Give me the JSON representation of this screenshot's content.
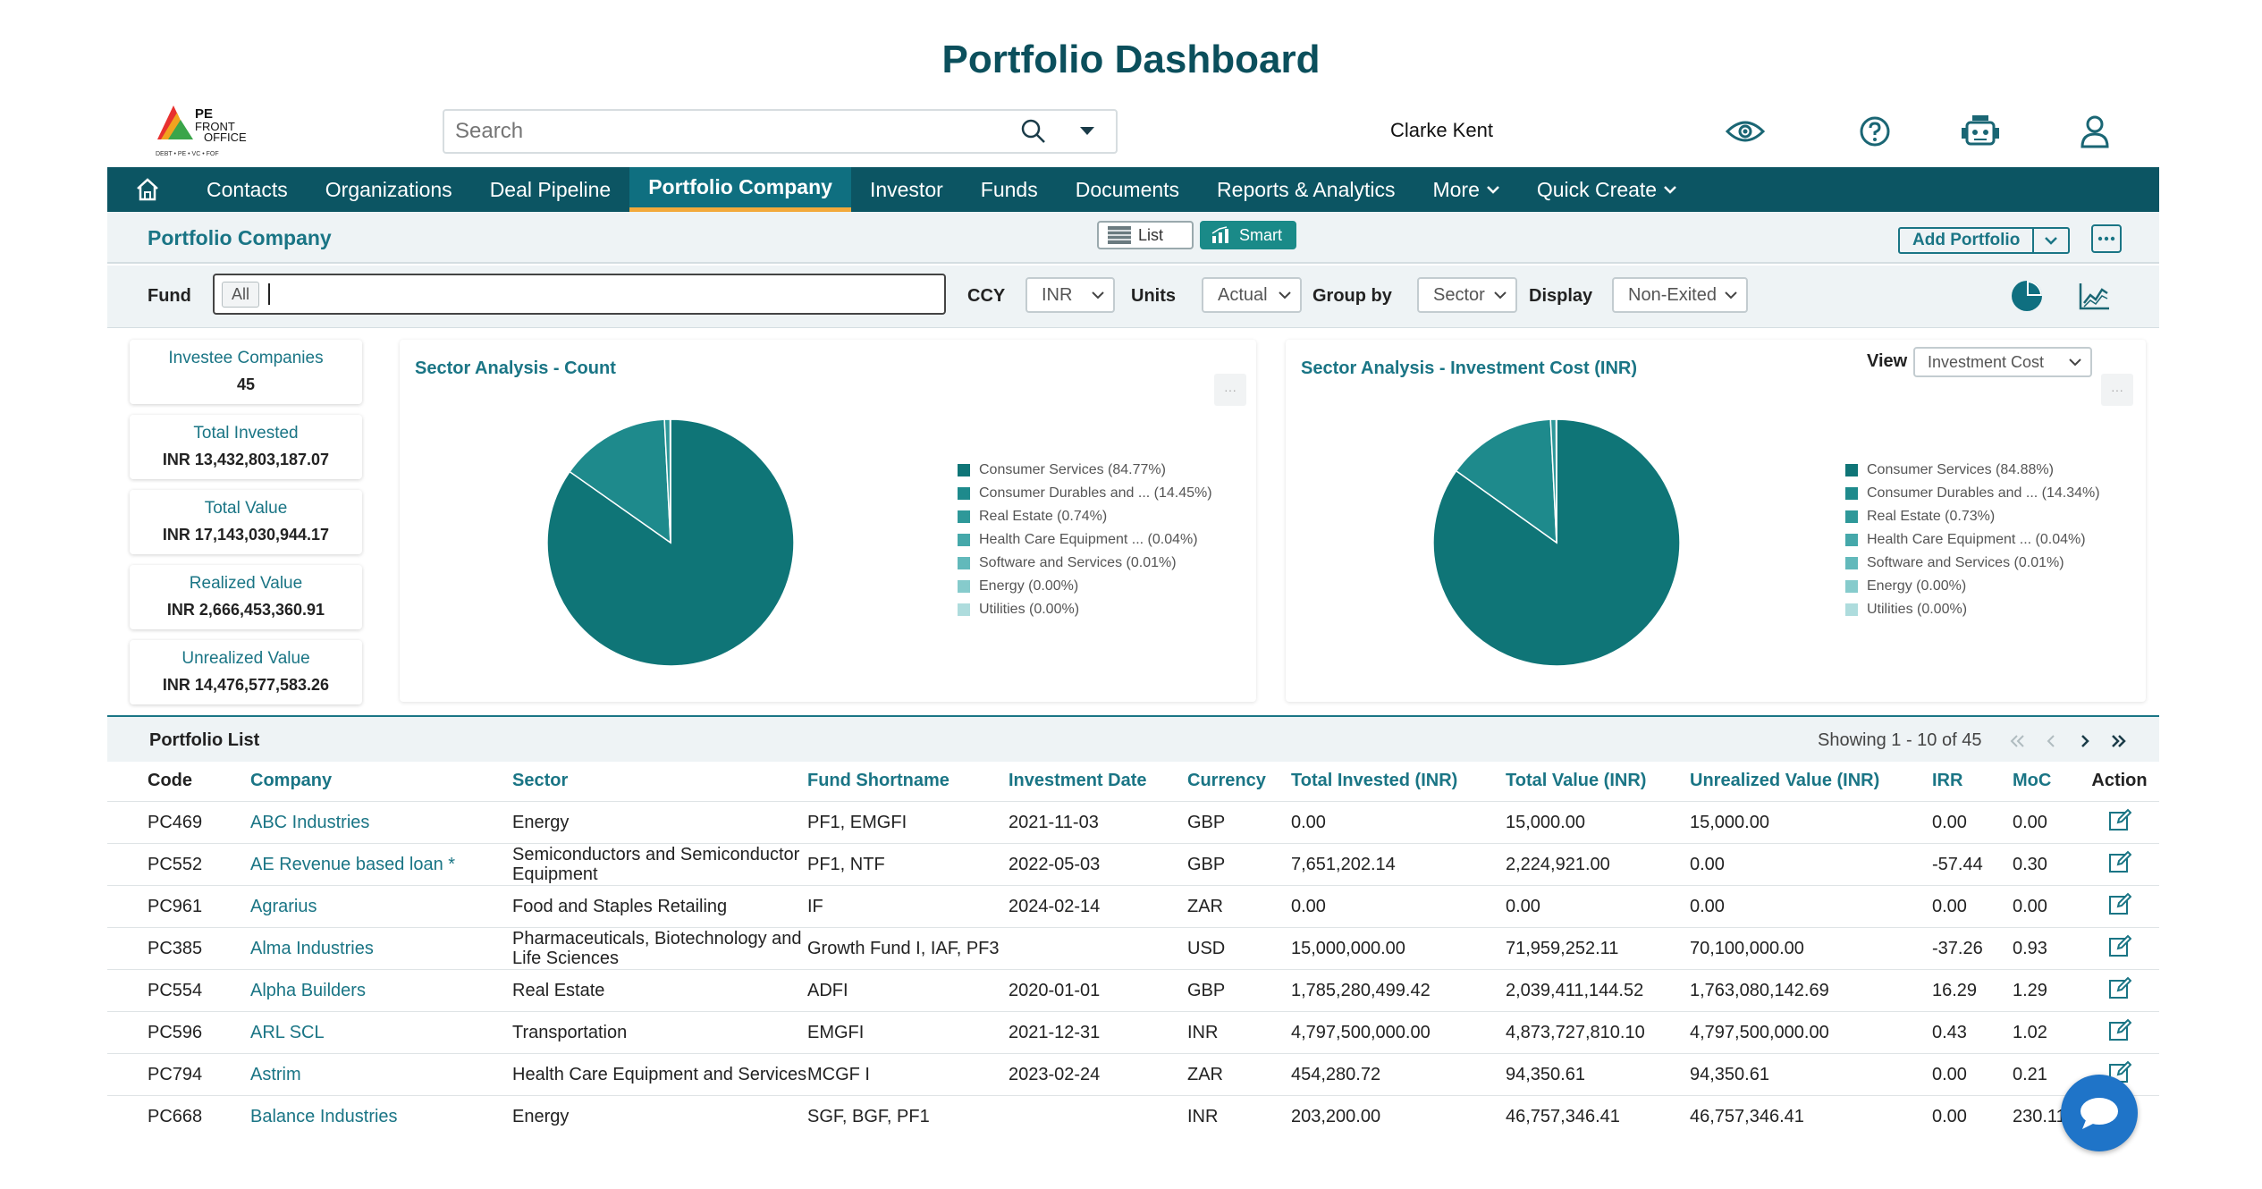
{
  "page_title": "Portfolio Dashboard",
  "logo": {
    "line1": "PE",
    "line2": "FRONT",
    "line3": "OFFICE",
    "tagline": "DEBT • PE • VC • FOF"
  },
  "search": {
    "placeholder": "Search"
  },
  "user": {
    "name": "Clarke Kent"
  },
  "header_icons": [
    "eye-icon",
    "help-icon",
    "robot-icon",
    "user-icon"
  ],
  "nav": {
    "items": [
      "Contacts",
      "Organizations",
      "Deal Pipeline",
      "Portfolio Company",
      "Investor",
      "Funds",
      "Documents",
      "Reports & Analytics",
      "More",
      "Quick Create"
    ],
    "active": "Portfolio Company"
  },
  "subheader": {
    "title": "Portfolio Company",
    "list_label": "List",
    "smart_label": "Smart",
    "add_portfolio": "Add Portfolio"
  },
  "filters": {
    "fund_label": "Fund",
    "fund_chip": "All",
    "ccy_label": "CCY",
    "ccy_value": "INR",
    "units_label": "Units",
    "units_value": "Actual",
    "group_label": "Group by",
    "group_value": "Sector",
    "display_label": "Display",
    "display_value": "Non-Exited"
  },
  "kpis": [
    {
      "label": "Investee Companies",
      "value": "45"
    },
    {
      "label": "Total Invested",
      "value": "INR 13,432,803,187.07"
    },
    {
      "label": "Total Value",
      "value": "INR 17,143,030,944.17"
    },
    {
      "label": "Realized Value",
      "value": "INR 2,666,453,360.91"
    },
    {
      "label": "Unrealized Value",
      "value": "INR 14,476,577,583.26"
    }
  ],
  "view": {
    "label": "View",
    "value": "Investment Cost"
  },
  "colors": [
    "#0f7577",
    "#1e8a8c",
    "#2e9899",
    "#45a8aa",
    "#62b9bb",
    "#86cbcc",
    "#aedcdd"
  ],
  "chart_data": [
    {
      "type": "pie",
      "title": "Sector Analysis - Count",
      "legend": [
        "Consumer Services (84.77%)",
        "Consumer Durables and ... (14.45%)",
        "Real Estate (0.74%)",
        "Health Care Equipment ... (0.04%)",
        "Software and Services (0.01%)",
        "Energy (0.00%)",
        "Utilities (0.00%)"
      ],
      "values": [
        84.77,
        14.45,
        0.74,
        0.04,
        0.01,
        0.0,
        0.0
      ]
    },
    {
      "type": "pie",
      "title": "Sector Analysis - Investment Cost (INR)",
      "legend": [
        "Consumer Services (84.88%)",
        "Consumer Durables and ... (14.34%)",
        "Real Estate (0.73%)",
        "Health Care Equipment ... (0.04%)",
        "Software and Services (0.01%)",
        "Energy (0.00%)",
        "Utilities (0.00%)"
      ],
      "values": [
        84.88,
        14.34,
        0.73,
        0.04,
        0.01,
        0.0,
        0.0
      ]
    }
  ],
  "portfolio_list": {
    "title": "Portfolio List",
    "showing": "Showing 1 - 10 of 45",
    "columns": [
      "Code",
      "Company",
      "Sector",
      "Fund Shortname",
      "Investment Date",
      "Currency",
      "Total Invested (INR)",
      "Total Value (INR)",
      "Unrealized Value (INR)",
      "IRR",
      "MoC",
      "Action"
    ],
    "rows": [
      [
        "PC469",
        "ABC Industries",
        "Energy",
        "PF1, EMGFI",
        "2021-11-03",
        "GBP",
        "0.00",
        "15,000.00",
        "15,000.00",
        "0.00",
        "0.00"
      ],
      [
        "PC552",
        "AE Revenue based loan *",
        "Semiconductors and Semiconductor Equipment",
        "PF1, NTF",
        "2022-05-03",
        "GBP",
        "7,651,202.14",
        "2,224,921.00",
        "0.00",
        "-57.44",
        "0.30"
      ],
      [
        "PC961",
        "Agrarius",
        "Food and Staples Retailing",
        "IF",
        "2024-02-14",
        "ZAR",
        "0.00",
        "0.00",
        "0.00",
        "0.00",
        "0.00"
      ],
      [
        "PC385",
        "Alma Industries",
        "Pharmaceuticals, Biotechnology and Life Sciences",
        "Growth Fund I, IAF, PF3",
        "",
        "USD",
        "15,000,000.00",
        "71,959,252.11",
        "70,100,000.00",
        "-37.26",
        "0.93"
      ],
      [
        "PC554",
        "Alpha Builders",
        "Real Estate",
        "ADFI",
        "2020-01-01",
        "GBP",
        "1,785,280,499.42",
        "2,039,411,144.52",
        "1,763,080,142.69",
        "16.29",
        "1.29"
      ],
      [
        "PC596",
        "ARL SCL",
        "Transportation",
        "EMGFI",
        "2021-12-31",
        "INR",
        "4,797,500,000.00",
        "4,873,727,810.10",
        "4,797,500,000.00",
        "0.43",
        "1.02"
      ],
      [
        "PC794",
        "Astrim",
        "Health Care Equipment and Services",
        "MCGF I",
        "2023-02-24",
        "ZAR",
        "454,280.72",
        "94,350.61",
        "94,350.61",
        "0.00",
        "0.21"
      ],
      [
        "PC668",
        "Balance Industries",
        "Energy",
        "SGF, BGF, PF1",
        "",
        "INR",
        "203,200.00",
        "46,757,346.41",
        "46,757,346.41",
        "0.00",
        "230.11"
      ]
    ]
  }
}
